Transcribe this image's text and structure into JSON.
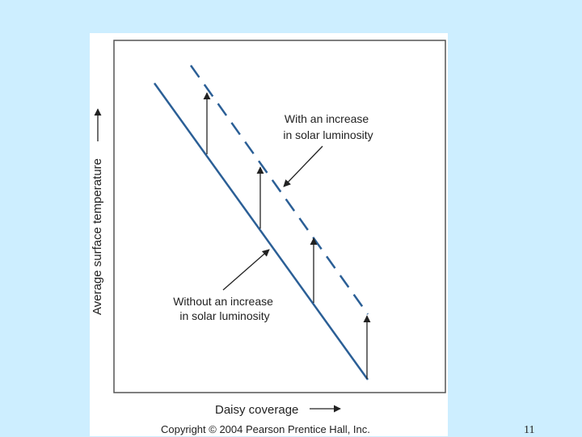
{
  "diagram": {
    "y_axis_label": "Average surface temperature",
    "x_axis_label": "Daisy coverage",
    "label_with_increase": [
      "With an increase",
      "in solar luminosity"
    ],
    "label_without_increase": [
      "Without an increase",
      "in solar luminosity"
    ],
    "colors": {
      "line": "#2b5f96",
      "frame": "#555555",
      "text": "#222222"
    }
  },
  "copyright": "Copyright © 2004 Pearson Prentice Hall, Inc.",
  "slide_number": "11"
}
